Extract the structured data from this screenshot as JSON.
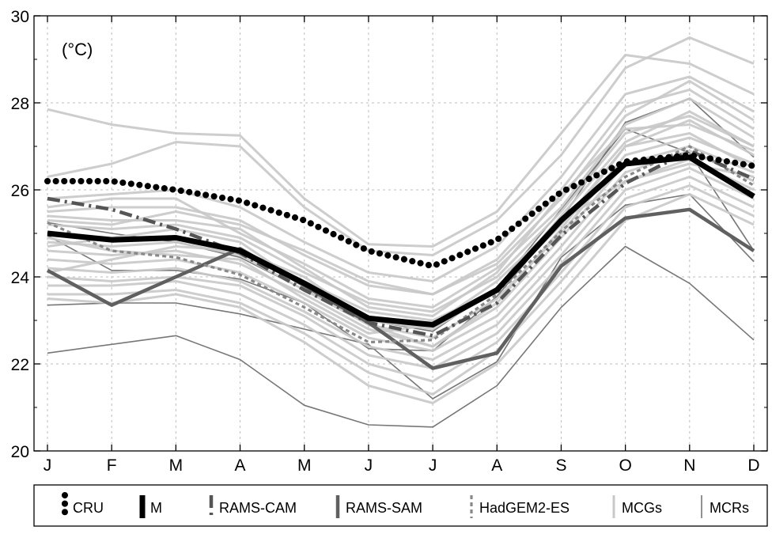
{
  "chart_data": {
    "type": "line",
    "unit_label": "(°C)",
    "categories": [
      "J",
      "F",
      "M",
      "A",
      "M",
      "J",
      "J",
      "A",
      "S",
      "O",
      "N",
      "D"
    ],
    "ylim": [
      20,
      30
    ],
    "yticks": [
      20,
      22,
      24,
      26,
      28,
      30
    ],
    "grid": true,
    "legend_position": "bottom",
    "legend": [
      "CRU",
      "M",
      "RAMS-CAM",
      "RAMS-SAM",
      "HadGEM2-ES",
      "MCGs",
      "MCRs"
    ],
    "series": [
      {
        "name": "CRU",
        "style": "dotted-heavy",
        "color": "#000000",
        "values": [
          26.2,
          26.2,
          26.0,
          25.75,
          25.3,
          24.6,
          24.25,
          24.85,
          25.95,
          26.65,
          26.8,
          26.55
        ]
      },
      {
        "name": "M",
        "style": "solid-heavy",
        "color": "#000000",
        "values": [
          25.0,
          24.85,
          24.9,
          24.6,
          23.85,
          23.05,
          22.9,
          23.7,
          25.3,
          26.6,
          26.75,
          25.85
        ]
      },
      {
        "name": "RAMS-CAM",
        "style": "dashdot",
        "color": "#555555",
        "values": [
          25.8,
          25.55,
          25.1,
          24.55,
          23.7,
          22.95,
          22.65,
          23.4,
          24.95,
          26.15,
          26.9,
          26.25
        ]
      },
      {
        "name": "RAMS-SAM",
        "style": "solid-medium",
        "color": "#606060",
        "values": [
          24.15,
          23.35,
          24.0,
          24.65,
          23.8,
          22.95,
          21.9,
          22.25,
          24.25,
          25.35,
          25.55,
          24.6
        ]
      },
      {
        "name": "HadGEM2-ES",
        "style": "dashed",
        "color": "#888888",
        "values": [
          25.25,
          24.6,
          24.45,
          24.05,
          23.3,
          22.5,
          22.55,
          23.6,
          25.05,
          26.3,
          27.0,
          26.1
        ]
      },
      {
        "name": "MCGs",
        "style": "solid-light",
        "color": "#c8c8c8",
        "members": [
          [
            27.85,
            27.5,
            27.3,
            27.25,
            25.8,
            24.75,
            24.7,
            25.5,
            27.3,
            29.1,
            28.9,
            28.2
          ],
          [
            26.3,
            26.6,
            27.1,
            27.0,
            25.6,
            24.6,
            24.5,
            25.3,
            26.8,
            28.8,
            29.5,
            28.9
          ],
          [
            25.5,
            25.6,
            25.6,
            25.3,
            24.5,
            23.8,
            23.6,
            24.3,
            25.8,
            27.7,
            28.5,
            27.6
          ],
          [
            25.6,
            25.8,
            25.8,
            25.0,
            24.3,
            23.5,
            23.3,
            24.2,
            25.6,
            27.5,
            28.1,
            27.2
          ],
          [
            25.3,
            25.2,
            25.5,
            25.2,
            24.6,
            23.9,
            23.6,
            24.4,
            26.0,
            27.9,
            28.3,
            27.4
          ],
          [
            25.2,
            25.1,
            25.2,
            24.9,
            24.1,
            23.4,
            23.2,
            24.0,
            25.5,
            27.3,
            27.7,
            27.0
          ],
          [
            25.0,
            24.9,
            24.9,
            24.6,
            23.9,
            23.2,
            23.0,
            23.7,
            25.2,
            27.0,
            27.6,
            26.8
          ],
          [
            24.8,
            24.7,
            24.8,
            24.5,
            23.7,
            22.9,
            22.6,
            23.5,
            25.0,
            26.8,
            27.2,
            26.6
          ],
          [
            24.6,
            24.5,
            24.6,
            24.3,
            23.6,
            22.8,
            22.4,
            23.3,
            24.9,
            26.6,
            27.0,
            26.4
          ],
          [
            24.4,
            24.3,
            24.4,
            24.1,
            23.4,
            22.6,
            22.3,
            23.1,
            24.7,
            26.4,
            26.9,
            26.2
          ],
          [
            24.2,
            24.1,
            24.2,
            23.9,
            23.2,
            22.4,
            22.1,
            22.9,
            24.5,
            26.2,
            26.7,
            26.0
          ],
          [
            24.0,
            23.9,
            24.0,
            23.8,
            23.1,
            22.2,
            21.9,
            22.7,
            24.3,
            26.0,
            26.5,
            25.8
          ],
          [
            23.8,
            23.8,
            23.9,
            23.6,
            22.9,
            22.0,
            21.6,
            22.5,
            24.1,
            25.8,
            26.3,
            25.6
          ],
          [
            23.6,
            23.6,
            23.7,
            23.4,
            22.7,
            21.8,
            21.3,
            22.3,
            23.9,
            25.6,
            26.1,
            25.4
          ],
          [
            24.1,
            24.4,
            24.7,
            24.6,
            24.0,
            23.0,
            22.8,
            23.7,
            25.4,
            27.1,
            27.8,
            27.0
          ],
          [
            25.4,
            25.3,
            25.3,
            25.1,
            24.2,
            23.3,
            23.1,
            24.1,
            25.9,
            27.4,
            27.5,
            26.9
          ],
          [
            24.9,
            24.6,
            24.5,
            24.4,
            23.5,
            22.7,
            22.9,
            23.9,
            25.3,
            26.2,
            26.6,
            26.3
          ],
          [
            23.5,
            23.4,
            23.6,
            23.3,
            22.5,
            21.5,
            21.1,
            22.0,
            23.6,
            25.3,
            25.9,
            25.2
          ],
          [
            24.7,
            24.9,
            25.1,
            24.8,
            23.8,
            22.9,
            22.4,
            23.4,
            25.1,
            27.0,
            27.3,
            26.5
          ],
          [
            25.8,
            25.9,
            26.0,
            25.6,
            24.8,
            24.1,
            23.9,
            24.7,
            26.3,
            28.2,
            28.6,
            27.8
          ]
        ]
      },
      {
        "name": "MCRs",
        "style": "solid-thin",
        "color": "#777777",
        "members": [
          [
            22.25,
            22.45,
            22.65,
            22.1,
            21.05,
            20.6,
            20.55,
            21.5,
            23.3,
            24.7,
            23.85,
            22.55
          ],
          [
            23.35,
            23.4,
            23.4,
            23.15,
            22.8,
            22.45,
            21.2,
            22.05,
            24.45,
            25.65,
            25.9,
            24.35
          ],
          [
            24.95,
            24.15,
            24.15,
            23.95,
            23.4,
            22.35,
            22.3,
            23.55,
            25.3,
            27.55,
            28.1,
            26.75
          ],
          [
            25.25,
            25.0,
            24.8,
            24.45,
            23.7,
            23.0,
            22.75,
            23.75,
            25.55,
            27.4,
            26.85,
            24.6
          ]
        ]
      }
    ]
  }
}
